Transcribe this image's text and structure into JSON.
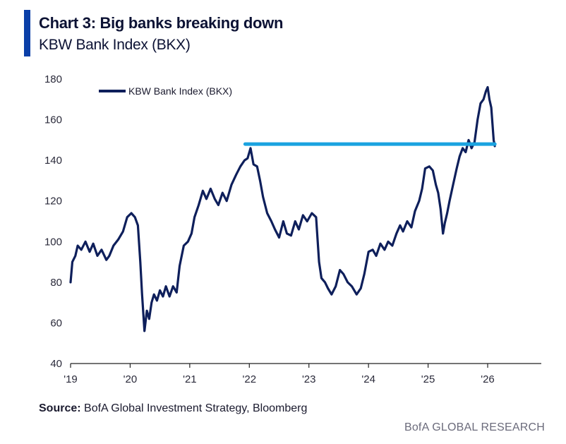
{
  "header": {
    "title": "Chart 3: Big banks breaking down",
    "subtitle": "KBW Bank Index (BKX)"
  },
  "footer": {
    "source_label": "Source:",
    "source_text": "BofA Global Investment Strategy, Bloomberg",
    "brand": "BofA GLOBAL RESEARCH"
  },
  "colors": {
    "series": "#0e1f5b",
    "support_line": "#1aa3e0",
    "accent": "#0a3fa8"
  },
  "chart_data": {
    "type": "line",
    "title": "Chart 3: Big banks breaking down",
    "subtitle": "KBW Bank Index (BKX)",
    "xlabel": "",
    "ylabel": "",
    "ylim": [
      40,
      180
    ],
    "yticks": [
      40,
      60,
      80,
      100,
      120,
      140,
      160,
      180
    ],
    "xlim": [
      2019.0,
      2026.9
    ],
    "xticks": [
      {
        "value": 2019,
        "label": "'19"
      },
      {
        "value": 2020,
        "label": "'20"
      },
      {
        "value": 2021,
        "label": "'21"
      },
      {
        "value": 2022,
        "label": "'22"
      },
      {
        "value": 2023,
        "label": "'23"
      },
      {
        "value": 2024,
        "label": "'24"
      },
      {
        "value": 2025,
        "label": "'25"
      },
      {
        "value": 2026,
        "label": "'26"
      }
    ],
    "grid": false,
    "legend": "top-left",
    "series": [
      {
        "name": "KBW Bank Index (BKX)",
        "points": [
          [
            2019.0,
            80
          ],
          [
            2019.03,
            90
          ],
          [
            2019.08,
            93
          ],
          [
            2019.12,
            98
          ],
          [
            2019.18,
            96
          ],
          [
            2019.25,
            100
          ],
          [
            2019.32,
            95
          ],
          [
            2019.38,
            99
          ],
          [
            2019.45,
            93
          ],
          [
            2019.52,
            96
          ],
          [
            2019.6,
            91
          ],
          [
            2019.65,
            93
          ],
          [
            2019.72,
            98
          ],
          [
            2019.8,
            101
          ],
          [
            2019.88,
            105
          ],
          [
            2019.95,
            112
          ],
          [
            2020.02,
            114
          ],
          [
            2020.08,
            112
          ],
          [
            2020.13,
            108
          ],
          [
            2020.17,
            90
          ],
          [
            2020.2,
            74
          ],
          [
            2020.22,
            65
          ],
          [
            2020.24,
            56
          ],
          [
            2020.28,
            66
          ],
          [
            2020.32,
            62
          ],
          [
            2020.36,
            70
          ],
          [
            2020.4,
            74
          ],
          [
            2020.45,
            71
          ],
          [
            2020.5,
            76
          ],
          [
            2020.55,
            73
          ],
          [
            2020.6,
            78
          ],
          [
            2020.66,
            73
          ],
          [
            2020.72,
            78
          ],
          [
            2020.78,
            75
          ],
          [
            2020.83,
            88
          ],
          [
            2020.9,
            98
          ],
          [
            2020.97,
            100
          ],
          [
            2021.03,
            104
          ],
          [
            2021.08,
            112
          ],
          [
            2021.15,
            118
          ],
          [
            2021.22,
            125
          ],
          [
            2021.28,
            121
          ],
          [
            2021.35,
            126
          ],
          [
            2021.42,
            121
          ],
          [
            2021.48,
            118
          ],
          [
            2021.55,
            124
          ],
          [
            2021.62,
            120
          ],
          [
            2021.7,
            128
          ],
          [
            2021.78,
            133
          ],
          [
            2021.85,
            137
          ],
          [
            2021.92,
            140
          ],
          [
            2021.97,
            141
          ],
          [
            2022.02,
            146
          ],
          [
            2022.07,
            138
          ],
          [
            2022.13,
            137
          ],
          [
            2022.18,
            130
          ],
          [
            2022.23,
            122
          ],
          [
            2022.3,
            114
          ],
          [
            2022.37,
            110
          ],
          [
            2022.43,
            106
          ],
          [
            2022.5,
            102
          ],
          [
            2022.57,
            110
          ],
          [
            2022.63,
            104
          ],
          [
            2022.7,
            103
          ],
          [
            2022.77,
            110
          ],
          [
            2022.83,
            106
          ],
          [
            2022.9,
            113
          ],
          [
            2022.97,
            110
          ],
          [
            2023.05,
            114
          ],
          [
            2023.12,
            112
          ],
          [
            2023.17,
            90
          ],
          [
            2023.21,
            82
          ],
          [
            2023.27,
            80
          ],
          [
            2023.32,
            77
          ],
          [
            2023.38,
            74
          ],
          [
            2023.45,
            78
          ],
          [
            2023.52,
            86
          ],
          [
            2023.58,
            84
          ],
          [
            2023.65,
            80
          ],
          [
            2023.72,
            78
          ],
          [
            2023.8,
            74
          ],
          [
            2023.87,
            77
          ],
          [
            2023.93,
            84
          ],
          [
            2024.0,
            95
          ],
          [
            2024.07,
            96
          ],
          [
            2024.13,
            93
          ],
          [
            2024.2,
            99
          ],
          [
            2024.27,
            96
          ],
          [
            2024.33,
            100
          ],
          [
            2024.4,
            98
          ],
          [
            2024.47,
            104
          ],
          [
            2024.53,
            108
          ],
          [
            2024.58,
            105
          ],
          [
            2024.65,
            110
          ],
          [
            2024.72,
            107
          ],
          [
            2024.78,
            115
          ],
          [
            2024.85,
            120
          ],
          [
            2024.9,
            126
          ],
          [
            2024.95,
            136
          ],
          [
            2025.02,
            137
          ],
          [
            2025.08,
            135
          ],
          [
            2025.13,
            128
          ],
          [
            2025.17,
            124
          ],
          [
            2025.21,
            116
          ],
          [
            2025.25,
            104
          ],
          [
            2025.28,
            109
          ],
          [
            2025.32,
            114
          ],
          [
            2025.36,
            120
          ],
          [
            2025.42,
            128
          ],
          [
            2025.48,
            136
          ],
          [
            2025.53,
            142
          ],
          [
            2025.58,
            146
          ],
          [
            2025.63,
            144
          ],
          [
            2025.68,
            150
          ],
          [
            2025.73,
            146
          ],
          [
            2025.78,
            149
          ],
          [
            2025.83,
            160
          ],
          [
            2025.88,
            168
          ],
          [
            2025.93,
            170
          ],
          [
            2025.97,
            174
          ],
          [
            2026.0,
            176
          ],
          [
            2026.03,
            170
          ],
          [
            2026.06,
            166
          ],
          [
            2026.08,
            158
          ],
          [
            2026.1,
            150
          ],
          [
            2026.12,
            147
          ]
        ]
      }
    ],
    "annotations": [
      {
        "type": "horizontal-line",
        "y": 148,
        "x_start": 2021.93,
        "x_end": 2026.12
      }
    ]
  }
}
